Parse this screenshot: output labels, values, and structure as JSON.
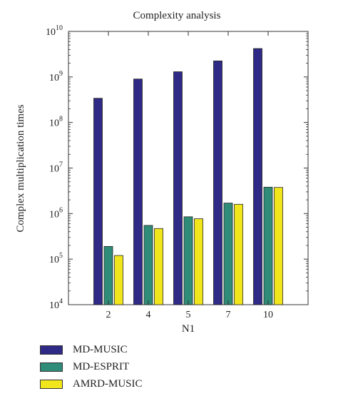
{
  "chart_data": {
    "type": "bar",
    "title": "Complexity analysis",
    "xlabel": "N1",
    "ylabel": "Complex multiplication times",
    "yscale": "log",
    "ylim": [
      10000,
      10000000000
    ],
    "yticks": [
      {
        "base": "10",
        "exp": "4"
      },
      {
        "base": "10",
        "exp": "5"
      },
      {
        "base": "10",
        "exp": "6"
      },
      {
        "base": "10",
        "exp": "7"
      },
      {
        "base": "10",
        "exp": "8"
      },
      {
        "base": "10",
        "exp": "9"
      },
      {
        "base": "10",
        "exp": "10"
      }
    ],
    "categories": [
      "2",
      "4",
      "5",
      "7",
      "10"
    ],
    "series": [
      {
        "name": "MD-MUSIC",
        "color": "#2e2a85",
        "values": [
          340000000,
          900000000,
          1300000000,
          2250000000,
          4200000000
        ]
      },
      {
        "name": "MD-ESPRIT",
        "color": "#2e8c78",
        "values": [
          190000,
          550000,
          850000,
          1700000,
          3800000
        ]
      },
      {
        "name": "AMRD-MUSIC",
        "color": "#f1e61c",
        "values": [
          120000,
          470000,
          770000,
          1600000,
          3750000
        ]
      }
    ],
    "legend_position": "bottom-left",
    "grid": false
  }
}
